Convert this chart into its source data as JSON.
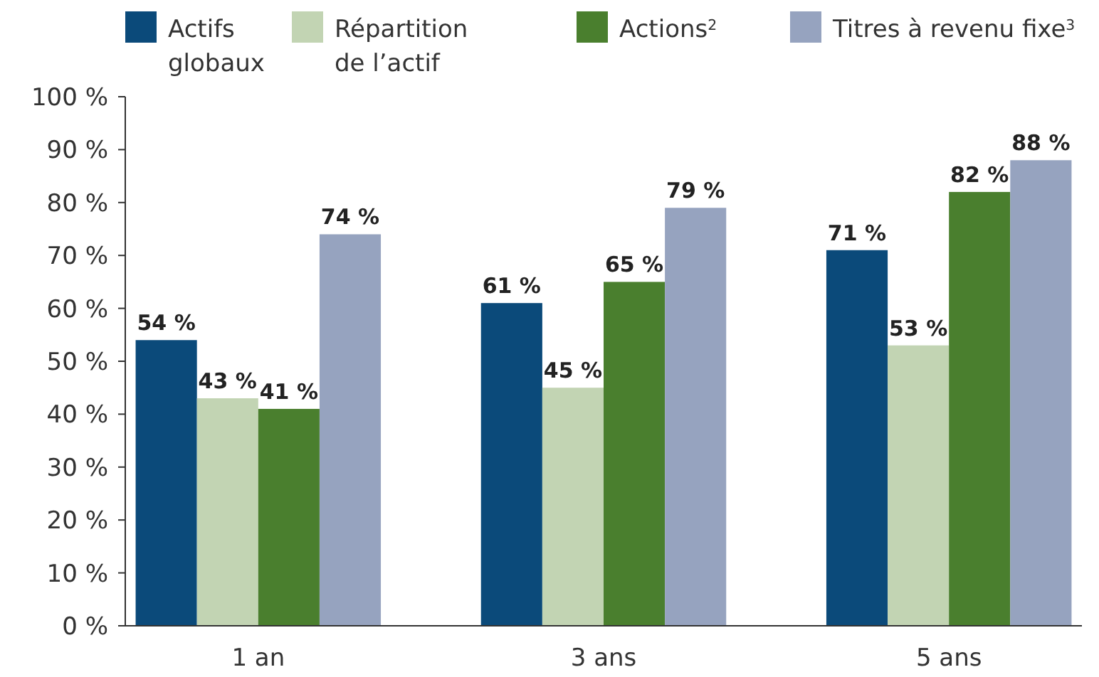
{
  "chart_data": {
    "type": "bar",
    "categories": [
      "1 an",
      "3 ans",
      "5 ans"
    ],
    "series": [
      {
        "name": "Actifs globaux",
        "color": "#0b4a7a",
        "values": [
          54,
          61,
          71
        ],
        "value_labels": [
          "54 %",
          "61 %",
          "71 %"
        ]
      },
      {
        "name": "Répartition de l’actif",
        "color": "#c2d4b3",
        "values": [
          43,
          45,
          53
        ],
        "value_labels": [
          "43 %",
          "45 %",
          "53 %"
        ]
      },
      {
        "name": "Actions$^{2}$",
        "color": "#4a7f2e",
        "values": [
          41,
          65,
          82
        ],
        "value_labels": [
          "41 %",
          "65 %",
          "82 %"
        ]
      },
      {
        "name": "Titres à revenu fixe$^{3}$",
        "color": "#96a3bf",
        "values": [
          74,
          79,
          88
        ],
        "value_labels": [
          "74 %",
          "79 %",
          "88 %"
        ]
      }
    ],
    "ylim": [
      0,
      100
    ],
    "yticks": [
      {
        "value": 0,
        "label": "0 %"
      },
      {
        "value": 10,
        "label": "10 %"
      },
      {
        "value": 20,
        "label": "20 %"
      },
      {
        "value": 30,
        "label": "30 %"
      },
      {
        "value": 40,
        "label": "40 %"
      },
      {
        "value": 50,
        "label": "50 %"
      },
      {
        "value": 60,
        "label": "60 %"
      },
      {
        "value": 70,
        "label": "70 %"
      },
      {
        "value": 80,
        "label": "80 %"
      },
      {
        "value": 90,
        "label": "90 %"
      },
      {
        "value": 100,
        "label": "100 %"
      }
    ],
    "grid": false,
    "legend": "top"
  }
}
